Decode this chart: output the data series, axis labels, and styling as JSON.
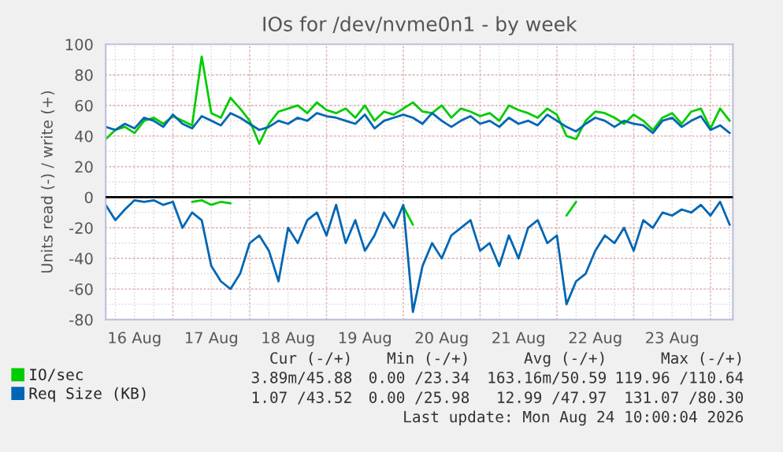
{
  "chart_data": {
    "type": "line",
    "title": "IOs for /dev/nvme0n1 - by week",
    "ylabel": "Units read (-) / write (+)",
    "x": [
      "2026-08-16T03:00",
      "2026-08-16T06:00",
      "2026-08-16T09:00",
      "2026-08-16T12:00",
      "2026-08-16T15:00",
      "2026-08-16T18:00",
      "2026-08-16T21:00",
      "2026-08-17T00:00",
      "2026-08-17T03:00",
      "2026-08-17T06:00",
      "2026-08-17T09:00",
      "2026-08-17T12:00",
      "2026-08-17T15:00",
      "2026-08-17T18:00",
      "2026-08-17T21:00",
      "2026-08-18T00:00",
      "2026-08-18T03:00",
      "2026-08-18T06:00",
      "2026-08-18T09:00",
      "2026-08-18T12:00",
      "2026-08-18T15:00",
      "2026-08-18T18:00",
      "2026-08-18T21:00",
      "2026-08-19T00:00",
      "2026-08-19T03:00",
      "2026-08-19T06:00",
      "2026-08-19T09:00",
      "2026-08-19T12:00",
      "2026-08-19T15:00",
      "2026-08-19T18:00",
      "2026-08-19T21:00",
      "2026-08-20T00:00",
      "2026-08-20T03:00",
      "2026-08-20T06:00",
      "2026-08-20T09:00",
      "2026-08-20T12:00",
      "2026-08-20T15:00",
      "2026-08-20T18:00",
      "2026-08-20T21:00",
      "2026-08-21T00:00",
      "2026-08-21T03:00",
      "2026-08-21T06:00",
      "2026-08-21T09:00",
      "2026-08-21T12:00",
      "2026-08-21T15:00",
      "2026-08-21T18:00",
      "2026-08-21T21:00",
      "2026-08-22T00:00",
      "2026-08-22T03:00",
      "2026-08-22T06:00",
      "2026-08-22T09:00",
      "2026-08-22T12:00",
      "2026-08-22T15:00",
      "2026-08-22T18:00",
      "2026-08-22T21:00",
      "2026-08-23T00:00",
      "2026-08-23T03:00",
      "2026-08-23T06:00",
      "2026-08-23T09:00",
      "2026-08-23T12:00",
      "2026-08-23T15:00",
      "2026-08-23T18:00",
      "2026-08-23T21:00",
      "2026-08-24T00:00",
      "2026-08-24T03:00",
      "2026-08-24T06:00"
    ],
    "series": [
      {
        "color": "#00cc00",
        "values": [
          null,
          null,
          null,
          null,
          null,
          null,
          null,
          null,
          null,
          -3,
          -2,
          -5,
          -3,
          -4,
          null,
          null,
          null,
          null,
          null,
          null,
          null,
          null,
          null,
          null,
          null,
          null,
          null,
          null,
          null,
          null,
          null,
          -6,
          -18,
          null,
          null,
          null,
          null,
          null,
          null,
          null,
          null,
          null,
          null,
          null,
          null,
          null,
          null,
          null,
          -12,
          -3,
          null,
          null,
          null,
          null,
          null,
          null,
          null,
          null,
          null,
          null,
          null,
          null,
          null,
          null,
          null,
          null
        ]
      },
      {
        "name": "IO/sec",
        "color": "#00cc00",
        "values": [
          38,
          44,
          46,
          42,
          50,
          52,
          48,
          53,
          50,
          47,
          92,
          55,
          52,
          65,
          58,
          50,
          35,
          48,
          56,
          58,
          60,
          55,
          62,
          57,
          55,
          58,
          52,
          60,
          50,
          56,
          54,
          58,
          62,
          56,
          55,
          60,
          52,
          58,
          56,
          53,
          55,
          50,
          60,
          57,
          55,
          52,
          58,
          54,
          40,
          38,
          50,
          56,
          55,
          52,
          48,
          54,
          50,
          44,
          52,
          55,
          48,
          56,
          58,
          45,
          58,
          50
        ]
      },
      {
        "color": "#0066b3",
        "values": [
          -5,
          -15,
          -8,
          -2,
          -3,
          -2,
          -5,
          -3,
          -20,
          -10,
          -15,
          -45,
          -55,
          -60,
          -50,
          -30,
          -25,
          -35,
          -55,
          -20,
          -30,
          -15,
          -10,
          -25,
          -5,
          -30,
          -15,
          -35,
          -25,
          -10,
          -20,
          -5,
          -75,
          -45,
          -30,
          -40,
          -25,
          -20,
          -15,
          -35,
          -30,
          -45,
          -25,
          -40,
          -20,
          -15,
          -30,
          -25,
          -70,
          -55,
          -50,
          -35,
          -25,
          -30,
          -20,
          -35,
          -15,
          -20,
          -10,
          -12,
          -8,
          -10,
          -5,
          -12,
          -3,
          -18
        ]
      },
      {
        "name": "Req Size (KB)",
        "color": "#0066b3",
        "values": [
          46,
          44,
          48,
          45,
          52,
          50,
          46,
          54,
          48,
          45,
          53,
          50,
          47,
          55,
          52,
          48,
          44,
          46,
          50,
          48,
          52,
          50,
          55,
          53,
          52,
          50,
          48,
          54,
          45,
          50,
          52,
          54,
          52,
          48,
          55,
          50,
          46,
          50,
          53,
          48,
          50,
          46,
          52,
          48,
          50,
          47,
          54,
          50,
          46,
          43,
          48,
          52,
          50,
          46,
          50,
          48,
          47,
          42,
          50,
          52,
          46,
          50,
          53,
          44,
          47,
          42
        ]
      }
    ],
    "xlim": [
      "2026-08-16T03:00",
      "2026-08-24T07:00"
    ],
    "xticks": [
      {
        "value": "2026-08-16T12:00",
        "label": "16 Aug"
      },
      {
        "value": "2026-08-17T00:00",
        "label": null
      },
      {
        "value": "2026-08-17T12:00",
        "label": "17 Aug"
      },
      {
        "value": "2026-08-18T00:00",
        "label": null
      },
      {
        "value": "2026-08-18T12:00",
        "label": "18 Aug"
      },
      {
        "value": "2026-08-19T00:00",
        "label": null
      },
      {
        "value": "2026-08-19T12:00",
        "label": "19 Aug"
      },
      {
        "value": "2026-08-20T00:00",
        "label": null
      },
      {
        "value": "2026-08-20T12:00",
        "label": "20 Aug"
      },
      {
        "value": "2026-08-21T00:00",
        "label": null
      },
      {
        "value": "2026-08-21T12:00",
        "label": "21 Aug"
      },
      {
        "value": "2026-08-22T00:00",
        "label": null
      },
      {
        "value": "2026-08-22T12:00",
        "label": "22 Aug"
      },
      {
        "value": "2026-08-23T00:00",
        "label": null
      },
      {
        "value": "2026-08-23T12:00",
        "label": "23 Aug"
      },
      {
        "value": "2026-08-24T00:00",
        "label": null
      }
    ],
    "ylim": [
      -80,
      100
    ],
    "yticks": [
      -80,
      -60,
      -40,
      -20,
      0,
      20,
      40,
      60,
      80,
      100
    ],
    "ref_lines": [
      {
        "axis": "y",
        "value": 0,
        "color": "#000000"
      }
    ],
    "grid": true,
    "legend": "bottom",
    "marker": "none",
    "line_style": "solid",
    "annotations": [
      "Cur (-/+)",
      "Min (-/+)",
      "Avg (-/+)",
      "Max (-/+)",
      "3.89m/45.88",
      "0.00 /23.34",
      "163.16m/50.59",
      "119.96 /110.64",
      "1.07 /43.52",
      "0.00 /25.98",
      "12.99 /47.97",
      "131.07 /80.30",
      "Last update: Mon Aug 24 10:00:04 2026"
    ]
  }
}
